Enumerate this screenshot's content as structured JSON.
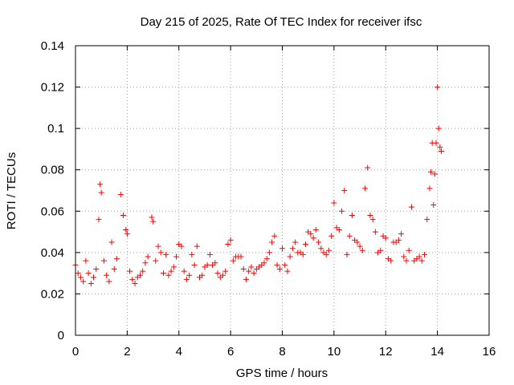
{
  "chart_data": {
    "type": "scatter",
    "title": "Day 215 of 2025, Rate Of TEC Index for receiver ifsc",
    "xlabel": "GPS time / hours",
    "ylabel": "ROTI / TECUs",
    "xlim": [
      0,
      16
    ],
    "ylim": [
      0,
      0.14
    ],
    "xticks": [
      "0",
      "2",
      "4",
      "6",
      "8",
      "10",
      "12",
      "14",
      "16"
    ],
    "yticks": [
      "0",
      "0.02",
      "0.04",
      "0.06",
      "0.08",
      "0.1",
      "0.12",
      "0.14"
    ],
    "grid": true,
    "marker": "+",
    "color": "#ff0000",
    "series": [
      {
        "name": "ROTI",
        "x": [
          0.0,
          0.1,
          0.2,
          0.3,
          0.4,
          0.5,
          0.6,
          0.7,
          0.8,
          0.9,
          0.95,
          1.0,
          1.1,
          1.2,
          1.3,
          1.4,
          1.5,
          1.6,
          1.75,
          1.85,
          1.95,
          2.0,
          2.1,
          2.2,
          2.3,
          2.4,
          2.5,
          2.6,
          2.7,
          2.8,
          2.95,
          3.0,
          3.1,
          3.2,
          3.3,
          3.4,
          3.5,
          3.6,
          3.7,
          3.8,
          3.9,
          4.0,
          4.1,
          4.2,
          4.3,
          4.4,
          4.5,
          4.6,
          4.7,
          4.8,
          4.9,
          5.0,
          5.1,
          5.2,
          5.3,
          5.4,
          5.5,
          5.6,
          5.7,
          5.8,
          5.9,
          6.0,
          6.1,
          6.2,
          6.3,
          6.4,
          6.5,
          6.6,
          6.7,
          6.8,
          6.9,
          7.0,
          7.1,
          7.2,
          7.3,
          7.4,
          7.5,
          7.6,
          7.7,
          7.8,
          7.9,
          8.0,
          8.1,
          8.2,
          8.3,
          8.4,
          8.5,
          8.6,
          8.7,
          8.8,
          8.9,
          9.0,
          9.1,
          9.2,
          9.3,
          9.4,
          9.5,
          9.6,
          9.7,
          9.8,
          9.9,
          10.0,
          10.1,
          10.2,
          10.3,
          10.4,
          10.5,
          10.6,
          10.7,
          10.8,
          10.9,
          11.0,
          11.1,
          11.2,
          11.3,
          11.4,
          11.5,
          11.6,
          11.7,
          11.8,
          11.9,
          12.0,
          12.1,
          12.2,
          12.3,
          12.4,
          12.5,
          12.6,
          12.7,
          12.8,
          12.9,
          13.0,
          13.1,
          13.2,
          13.3,
          13.4,
          13.5,
          13.6,
          13.7,
          13.75,
          13.8,
          13.85,
          13.9,
          13.95,
          14.0,
          14.05,
          14.1,
          14.15
        ],
        "y": [
          0.034,
          0.03,
          0.028,
          0.026,
          0.036,
          0.03,
          0.025,
          0.028,
          0.032,
          0.056,
          0.073,
          0.069,
          0.036,
          0.029,
          0.026,
          0.045,
          0.032,
          0.037,
          0.068,
          0.058,
          0.051,
          0.049,
          0.031,
          0.027,
          0.025,
          0.028,
          0.029,
          0.031,
          0.035,
          0.038,
          0.057,
          0.055,
          0.036,
          0.043,
          0.04,
          0.03,
          0.039,
          0.029,
          0.031,
          0.033,
          0.038,
          0.044,
          0.043,
          0.031,
          0.027,
          0.029,
          0.039,
          0.034,
          0.043,
          0.028,
          0.029,
          0.033,
          0.034,
          0.039,
          0.034,
          0.035,
          0.03,
          0.028,
          0.029,
          0.031,
          0.044,
          0.046,
          0.036,
          0.038,
          0.038,
          0.038,
          0.032,
          0.027,
          0.031,
          0.033,
          0.03,
          0.032,
          0.033,
          0.034,
          0.035,
          0.037,
          0.04,
          0.045,
          0.048,
          0.034,
          0.032,
          0.042,
          0.034,
          0.031,
          0.038,
          0.042,
          0.045,
          0.04,
          0.04,
          0.039,
          0.044,
          0.05,
          0.049,
          0.047,
          0.051,
          0.045,
          0.042,
          0.04,
          0.039,
          0.041,
          0.048,
          0.064,
          0.052,
          0.051,
          0.06,
          0.07,
          0.039,
          0.048,
          0.058,
          0.046,
          0.045,
          0.043,
          0.041,
          0.071,
          0.081,
          0.058,
          0.056,
          0.05,
          0.04,
          0.041,
          0.048,
          0.047,
          0.037,
          0.036,
          0.045,
          0.045,
          0.046,
          0.049,
          0.038,
          0.036,
          0.041,
          0.062,
          0.036,
          0.037,
          0.038,
          0.036,
          0.039,
          0.056,
          0.071,
          0.079,
          0.093,
          0.063,
          0.078,
          0.093,
          0.12,
          0.1,
          0.091,
          0.089
        ]
      }
    ]
  }
}
